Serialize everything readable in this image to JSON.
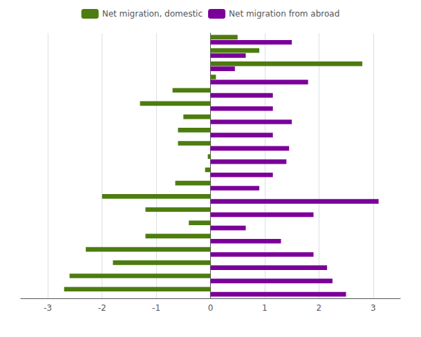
{
  "chart_data": {
    "type": "bar",
    "orientation": "horizontal",
    "categories": [
      null,
      null,
      null,
      null,
      null,
      null,
      null,
      null,
      null,
      null,
      null,
      null,
      null,
      null,
      null,
      null,
      null,
      null,
      null,
      null
    ],
    "series": [
      {
        "name": "Net migration, domestic",
        "color": "#4d7c0f",
        "values": [
          0.5,
          0.9,
          2.8,
          0.1,
          -0.7,
          -1.3,
          -0.5,
          -0.6,
          -0.6,
          -0.05,
          -0.1,
          -0.65,
          -2.0,
          -1.2,
          -0.4,
          -1.2,
          -2.3,
          -1.8,
          -2.6,
          -2.7
        ]
      },
      {
        "name": "Net migration from abroad",
        "color": "#7b0099",
        "values": [
          1.5,
          0.65,
          0.45,
          1.8,
          1.15,
          1.15,
          1.5,
          1.15,
          1.45,
          1.4,
          1.15,
          0.9,
          3.1,
          1.9,
          0.65,
          1.3,
          1.9,
          2.15,
          2.25,
          2.5
        ]
      }
    ],
    "xlim": [
      -3.5,
      3.5
    ],
    "xticks": [
      -3,
      -2,
      -1,
      0,
      1,
      2,
      3
    ],
    "grid": true,
    "legend": "top",
    "tick_labels": "x"
  }
}
